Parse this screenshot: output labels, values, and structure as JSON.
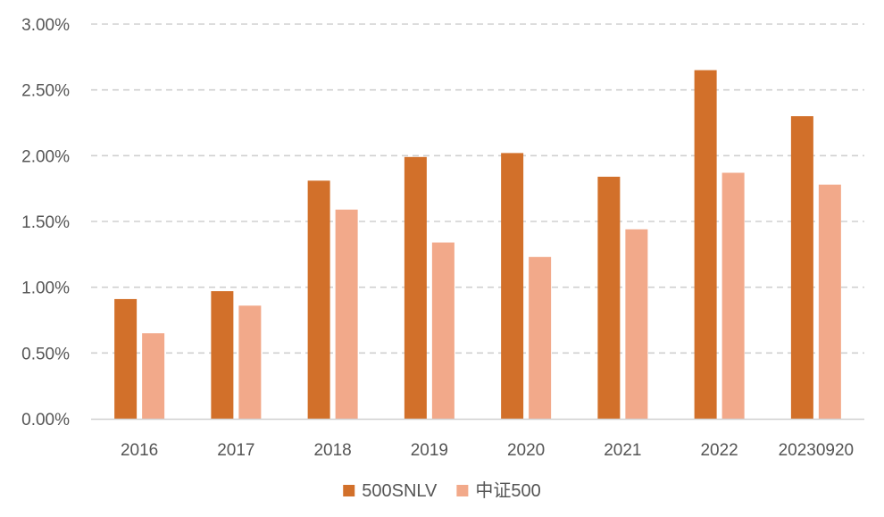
{
  "chart_data": {
    "type": "bar",
    "categories": [
      "2016",
      "2017",
      "2018",
      "2019",
      "2020",
      "2021",
      "2022",
      "20230920"
    ],
    "series": [
      {
        "name": "500SNLV",
        "color": "#D2702A",
        "values": [
          0.91,
          0.97,
          1.81,
          1.99,
          2.02,
          1.84,
          2.65,
          2.3
        ]
      },
      {
        "name": "中证500",
        "color": "#F2A98A",
        "values": [
          0.65,
          0.86,
          1.59,
          1.34,
          1.23,
          1.44,
          1.87,
          1.78
        ]
      }
    ],
    "y_ticks": [
      "0.00%",
      "0.50%",
      "1.00%",
      "1.50%",
      "2.00%",
      "2.50%",
      "3.00%"
    ],
    "ylim": [
      0,
      3.0
    ],
    "y_unit": "%",
    "grid": true,
    "legend_position": "bottom-center"
  }
}
